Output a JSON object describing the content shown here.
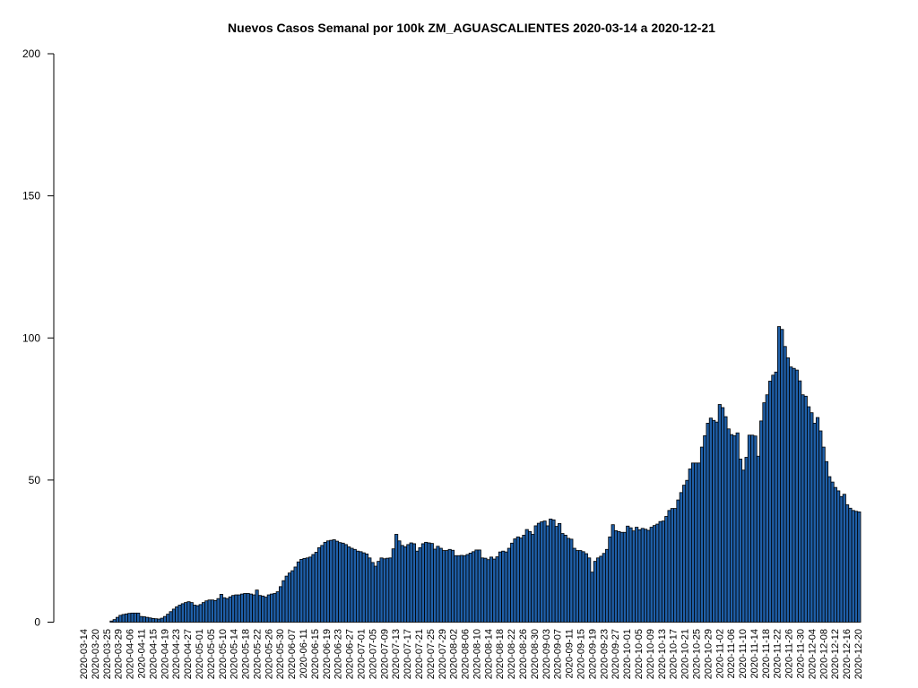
{
  "chart_data": {
    "type": "bar",
    "title": "Nuevos Casos Semanal por 100k ZM_AGUASCALIENTES 2020-03-14 a 2020-12-21",
    "xlabel": "",
    "ylabel": "",
    "ylim": [
      0,
      200
    ],
    "yticks": [
      0,
      50,
      100,
      150,
      200
    ],
    "grid": false,
    "legend": "none",
    "bar_color": "#1f5fa8",
    "bar_border_color": "#000000",
    "start_date": "2020-03-14",
    "end_date": "2020-12-21",
    "x_tick_labels": [
      "2020-03-14",
      "2020-03-20",
      "2020-03-25",
      "2020-03-29",
      "2020-04-06",
      "2020-04-11",
      "2020-04-15",
      "2020-04-19",
      "2020-04-23",
      "2020-04-27",
      "2020-05-01",
      "2020-05-05",
      "2020-05-10",
      "2020-05-14",
      "2020-05-18",
      "2020-05-22",
      "2020-05-26",
      "2020-05-30",
      "2020-06-07",
      "2020-06-11",
      "2020-06-15",
      "2020-06-19",
      "2020-06-23",
      "2020-06-27",
      "2020-07-01",
      "2020-07-05",
      "2020-07-09",
      "2020-07-13",
      "2020-07-17",
      "2020-07-21",
      "2020-07-25",
      "2020-07-29",
      "2020-08-02",
      "2020-08-06",
      "2020-08-10",
      "2020-08-14",
      "2020-08-18",
      "2020-08-22",
      "2020-08-26",
      "2020-08-30",
      "2020-09-03",
      "2020-09-07",
      "2020-09-11",
      "2020-09-15",
      "2020-09-19",
      "2020-09-23",
      "2020-09-27",
      "2020-10-01",
      "2020-10-05",
      "2020-10-09",
      "2020-10-13",
      "2020-10-17",
      "2020-10-21",
      "2020-10-25",
      "2020-10-29",
      "2020-11-02",
      "2020-11-06",
      "2020-11-10",
      "2020-11-14",
      "2020-11-18",
      "2020-11-22",
      "2020-11-26",
      "2020-11-30",
      "2020-12-04",
      "2020-12-08",
      "2020-12-12",
      "2020-12-16",
      "2020-12-20"
    ],
    "series": [
      {
        "values": [
          0,
          0,
          0,
          0,
          0,
          0,
          0,
          0,
          0,
          0.4,
          0.9,
          1.7,
          2.4,
          2.7,
          2.9,
          3.1,
          3.2,
          3.2,
          3.2,
          2.0,
          1.9,
          1.7,
          1.5,
          1.3,
          1.2,
          1.1,
          1.4,
          2.0,
          2.8,
          3.7,
          4.6,
          5.4,
          6.0,
          6.5,
          6.9,
          7.2,
          6.9,
          6.0,
          5.8,
          6.2,
          6.9,
          7.5,
          7.8,
          7.8,
          7.6,
          8.3,
          9.8,
          8.6,
          8.3,
          8.9,
          9.4,
          9.6,
          9.6,
          9.9,
          10.1,
          10.1,
          9.9,
          9.6,
          11.3,
          9.4,
          9.2,
          8.8,
          9.6,
          9.9,
          10.1,
          10.7,
          12.5,
          14.6,
          16.2,
          17.3,
          18.1,
          19.4,
          21.2,
          22.1,
          22.4,
          22.6,
          22.9,
          23.8,
          24.6,
          26.2,
          27.0,
          28.1,
          28.6,
          28.8,
          29.0,
          28.5,
          28.0,
          27.8,
          27.3,
          26.5,
          26.0,
          25.6,
          25.0,
          24.8,
          24.4,
          24.0,
          22.6,
          21.0,
          19.7,
          21.4,
          22.6,
          22.3,
          22.5,
          22.6,
          25.8,
          30.9,
          28.6,
          27.0,
          26.5,
          27.3,
          27.9,
          27.6,
          25.0,
          26.2,
          27.6,
          28.1,
          27.9,
          27.7,
          25.7,
          26.7,
          26.0,
          25.2,
          25.2,
          25.6,
          25.3,
          23.4,
          23.4,
          23.5,
          23.4,
          23.8,
          24.3,
          24.8,
          25.4,
          25.4,
          22.6,
          22.5,
          22.0,
          22.9,
          22.2,
          23.0,
          24.7,
          25.0,
          24.7,
          26.0,
          27.8,
          29.3,
          30.0,
          29.6,
          30.6,
          32.6,
          31.9,
          30.9,
          33.9,
          34.8,
          35.3,
          35.6,
          33.9,
          36.3,
          36.0,
          33.7,
          34.7,
          31.2,
          30.6,
          29.5,
          29.2,
          26.0,
          25.2,
          25.2,
          24.8,
          24.1,
          22.6,
          17.6,
          21.4,
          22.6,
          23.2,
          24.2,
          25.6,
          30.0,
          34.3,
          32.2,
          31.9,
          31.6,
          31.6,
          33.8,
          33.2,
          32.1,
          33.4,
          32.5,
          33.0,
          32.7,
          32.3,
          33.4,
          34.0,
          34.5,
          35.4,
          35.6,
          37.2,
          39.3,
          40.0,
          40.0,
          43.0,
          45.6,
          48.2,
          49.9,
          53.9,
          56.0,
          56.0,
          56.0,
          61.6,
          65.6,
          70.0,
          71.8,
          71.0,
          70.4,
          76.6,
          75.5,
          72.3,
          68.0,
          66.0,
          65.6,
          66.6,
          57.4,
          53.5,
          58.0,
          65.8,
          65.8,
          65.5,
          58.4,
          70.8,
          77.2,
          80.0,
          84.8,
          86.9,
          88.0,
          104.0,
          103.0,
          97.0,
          93.0,
          89.8,
          89.3,
          88.7,
          84.9,
          80.0,
          79.5,
          75.8,
          73.7,
          70.0,
          72.0,
          67.3,
          61.6,
          56.5,
          51.2,
          49.3,
          47.4,
          46.2,
          44.2,
          45.0,
          41.3,
          40.1,
          39.3,
          39.0,
          38.8
        ]
      }
    ]
  }
}
